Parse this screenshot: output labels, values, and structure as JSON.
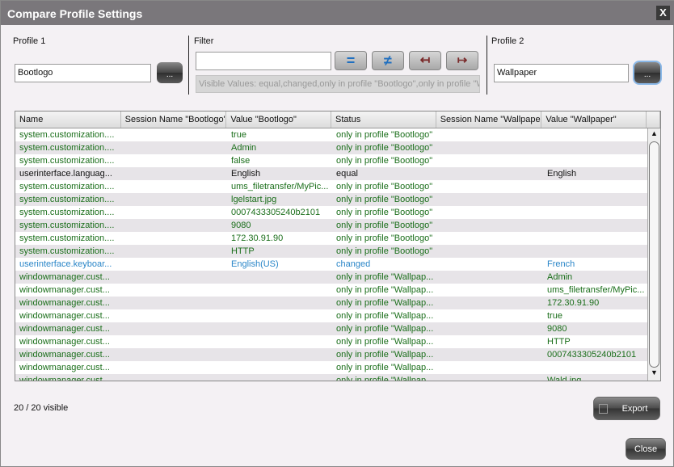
{
  "window": {
    "title": "Compare Profile Settings",
    "close_label": "X"
  },
  "profile1": {
    "label": "Profile 1",
    "value": "Bootlogo",
    "browse_label": "..."
  },
  "profile2": {
    "label": "Profile 2",
    "value": "Wallpaper",
    "browse_label": "..."
  },
  "filter": {
    "label": "Filter",
    "value": "",
    "buttons": {
      "equal": "=",
      "changed": "≠",
      "only_left": "↤",
      "only_right": "↦"
    },
    "visible_values": "Visible Values: equal,changed,only in profile \"Bootlogo\",only in profile \"Wallpaper\""
  },
  "table": {
    "columns": [
      "Name",
      "Session Name \"Bootlogo\"",
      "Value \"Bootlogo\"",
      "Status",
      "Session Name \"Wallpaper\"",
      "Value \"Wallpaper\""
    ],
    "colors": {
      "only": "#1a6e1a",
      "equal": "#111111",
      "changed": "#2a86c8"
    },
    "rows": [
      {
        "kind": "only",
        "cells": [
          "system.customization....",
          "",
          "true",
          "only in profile \"Bootlogo\"",
          "",
          ""
        ]
      },
      {
        "kind": "only",
        "cells": [
          "system.customization....",
          "",
          "Admin",
          "only in profile \"Bootlogo\"",
          "",
          ""
        ]
      },
      {
        "kind": "only",
        "cells": [
          "system.customization....",
          "",
          "false",
          "only in profile \"Bootlogo\"",
          "",
          ""
        ]
      },
      {
        "kind": "equal",
        "cells": [
          "userinterface.languag...",
          "",
          "English",
          "equal",
          "",
          "English"
        ]
      },
      {
        "kind": "only",
        "cells": [
          "system.customization....",
          "",
          "ums_filetransfer/MyPic...",
          "only in profile \"Bootlogo\"",
          "",
          ""
        ]
      },
      {
        "kind": "only",
        "cells": [
          "system.customization....",
          "",
          "lgelstart.jpg",
          "only in profile \"Bootlogo\"",
          "",
          ""
        ]
      },
      {
        "kind": "only",
        "cells": [
          "system.customization....",
          "",
          "0007433305240b2101",
          "only in profile \"Bootlogo\"",
          "",
          ""
        ]
      },
      {
        "kind": "only",
        "cells": [
          "system.customization....",
          "",
          "9080",
          "only in profile \"Bootlogo\"",
          "",
          ""
        ]
      },
      {
        "kind": "only",
        "cells": [
          "system.customization....",
          "",
          "172.30.91.90",
          "only in profile \"Bootlogo\"",
          "",
          ""
        ]
      },
      {
        "kind": "only",
        "cells": [
          "system.customization....",
          "",
          "HTTP",
          "only in profile \"Bootlogo\"",
          "",
          ""
        ]
      },
      {
        "kind": "changed",
        "cells": [
          "userinterface.keyboar...",
          "",
          "English(US)",
          "changed",
          "",
          "French"
        ]
      },
      {
        "kind": "only",
        "cells": [
          "windowmanager.cust...",
          "",
          "",
          "only in profile \"Wallpap...",
          "",
          "Admin"
        ]
      },
      {
        "kind": "only",
        "cells": [
          "windowmanager.cust...",
          "",
          "",
          "only in profile \"Wallpap...",
          "",
          "ums_filetransfer/MyPic..."
        ]
      },
      {
        "kind": "only",
        "cells": [
          "windowmanager.cust...",
          "",
          "",
          "only in profile \"Wallpap...",
          "",
          "172.30.91.90"
        ]
      },
      {
        "kind": "only",
        "cells": [
          "windowmanager.cust...",
          "",
          "",
          "only in profile \"Wallpap...",
          "",
          "true"
        ]
      },
      {
        "kind": "only",
        "cells": [
          "windowmanager.cust...",
          "",
          "",
          "only in profile \"Wallpap...",
          "",
          "9080"
        ]
      },
      {
        "kind": "only",
        "cells": [
          "windowmanager.cust...",
          "",
          "",
          "only in profile \"Wallpap...",
          "",
          "HTTP"
        ]
      },
      {
        "kind": "only",
        "cells": [
          "windowmanager.cust...",
          "",
          "",
          "only in profile \"Wallpap...",
          "",
          "0007433305240b2101"
        ]
      },
      {
        "kind": "only",
        "cells": [
          "windowmanager.cust...",
          "",
          "",
          "only in profile \"Wallpap...",
          "",
          ""
        ]
      },
      {
        "kind": "only",
        "cells": [
          "windowmanager.cust...",
          "",
          "",
          "only in profile \"Wallpap...",
          "",
          "Wald.jpg"
        ]
      }
    ]
  },
  "footer": {
    "count": "20 / 20 visible",
    "export_label": "Export",
    "close_label": "Close"
  }
}
